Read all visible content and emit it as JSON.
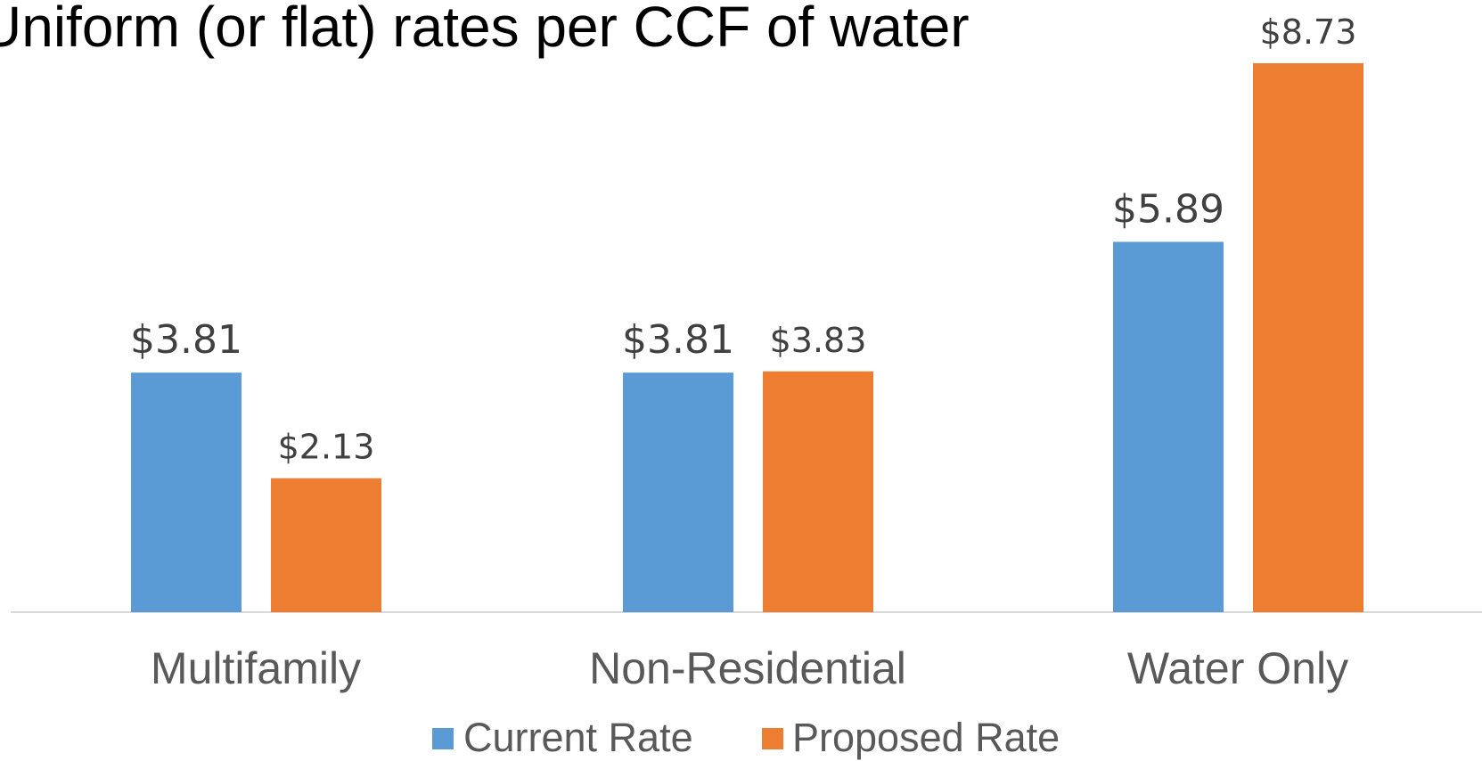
{
  "chart_data": {
    "type": "bar",
    "title": "Uniform (or flat) rates per CCF of water",
    "categories": [
      "Multifamily",
      "Non-Residential",
      "Water Only"
    ],
    "series": [
      {
        "name": "Current Rate",
        "color": "#5b9bd5",
        "values": [
          3.81,
          3.81,
          5.89
        ],
        "value_labels": [
          "$3.81",
          "$3.81",
          "$5.89"
        ]
      },
      {
        "name": "Proposed Rate",
        "color": "#ed7d31",
        "values": [
          2.13,
          3.83,
          8.73
        ],
        "value_labels": [
          "$2.13",
          "$3.83",
          "$8.73"
        ]
      }
    ],
    "legend": "bottom"
  }
}
